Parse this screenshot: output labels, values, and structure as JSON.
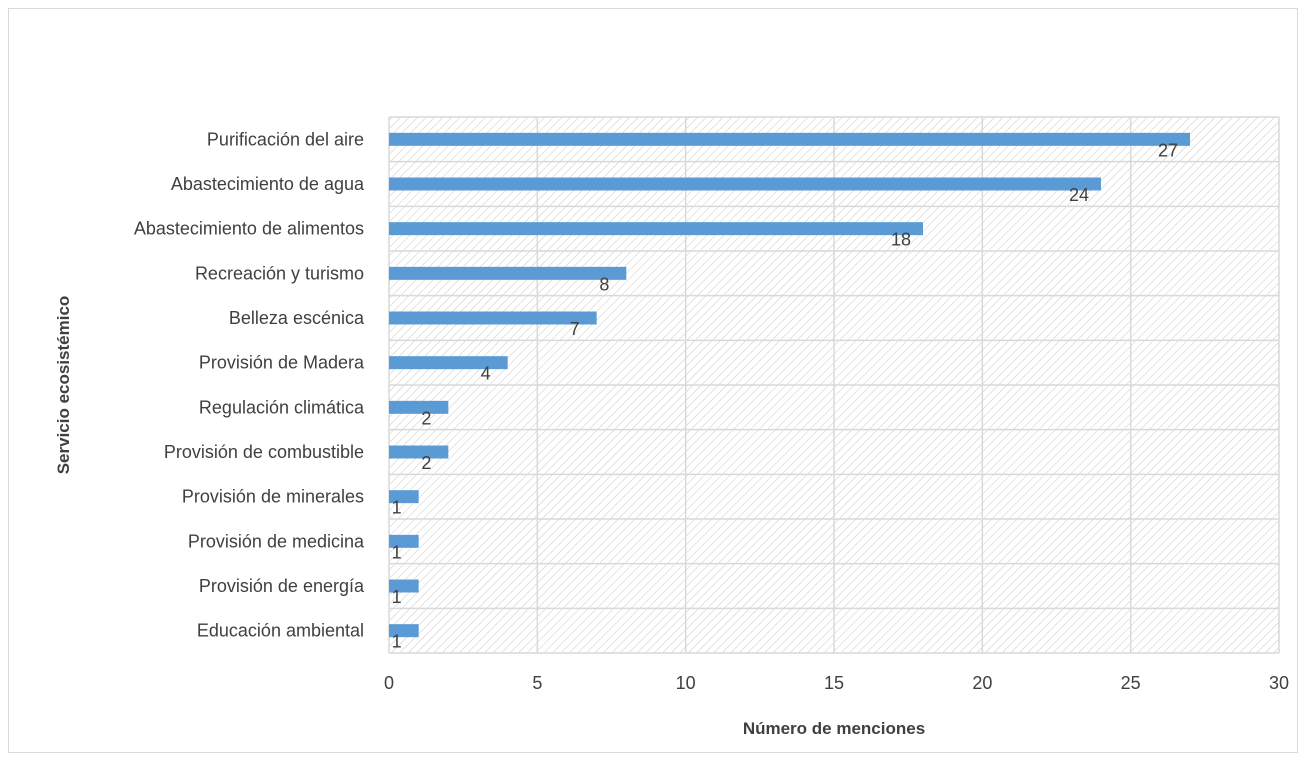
{
  "chart_data": {
    "type": "bar",
    "orientation": "horizontal",
    "categories": [
      "Purificación del aire",
      "Abastecimiento de agua",
      "Abastecimiento de alimentos",
      "Recreación y turismo",
      "Belleza escénica",
      "Provisión de Madera",
      "Regulación climática",
      "Provisión de combustible",
      "Provisión de minerales",
      "Provisión de medicina",
      "Provisión de energía",
      "Educación ambiental"
    ],
    "values": [
      27,
      24,
      18,
      8,
      7,
      4,
      2,
      2,
      1,
      1,
      1,
      1
    ],
    "xlabel": "Número de menciones",
    "ylabel": "Servicio ecosistémico",
    "xlim": [
      0,
      30
    ],
    "xticks": [
      0,
      5,
      10,
      15,
      20,
      25,
      30
    ],
    "grid": true,
    "plot_background": "diagonal-hatch",
    "colors": {
      "bar": "#5b9bd5",
      "grid": "#d9d9d9",
      "hatch": "#c8c8c8",
      "text": "#404040"
    }
  }
}
